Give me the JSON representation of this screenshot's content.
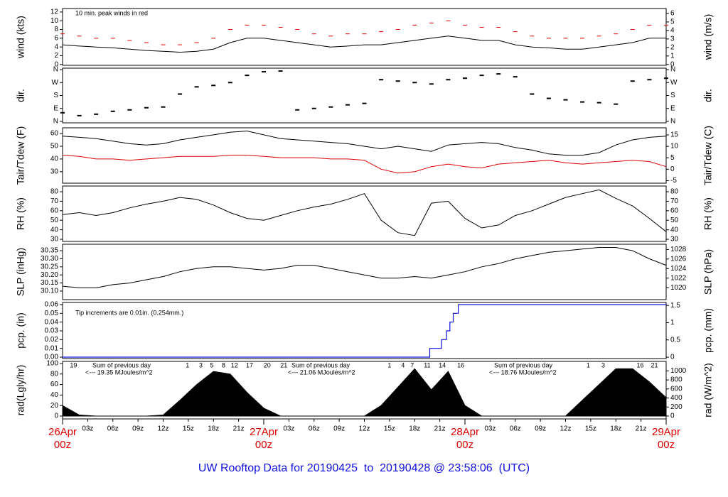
{
  "title": "UW Rooftop Data for 20190425  to  20190428 @ 23:58:06  (UTC)",
  "x": [
    0,
    2,
    4,
    6,
    8,
    10,
    12,
    14,
    16,
    18,
    20,
    22,
    24,
    26,
    28,
    30,
    32,
    34,
    36,
    38,
    40,
    42,
    44,
    46,
    48,
    50,
    52,
    54,
    56,
    58,
    60,
    62,
    64,
    66,
    68,
    70,
    72
  ],
  "xlim": [
    0,
    72
  ],
  "xticks": [
    {
      "value": 3,
      "label": "03z"
    },
    {
      "value": 6,
      "label": "06z"
    },
    {
      "value": 9,
      "label": "09z"
    },
    {
      "value": 12,
      "label": "12z"
    },
    {
      "value": 15,
      "label": "15z"
    },
    {
      "value": 18,
      "label": "18z"
    },
    {
      "value": 21,
      "label": "21z"
    },
    {
      "value": 27,
      "label": "03z"
    },
    {
      "value": 30,
      "label": "06z"
    },
    {
      "value": 33,
      "label": "09z"
    },
    {
      "value": 36,
      "label": "12z"
    },
    {
      "value": 39,
      "label": "15z"
    },
    {
      "value": 42,
      "label": "18z"
    },
    {
      "value": 45,
      "label": "21z"
    },
    {
      "value": 51,
      "label": "03z"
    },
    {
      "value": 54,
      "label": "06z"
    },
    {
      "value": 57,
      "label": "09z"
    },
    {
      "value": 60,
      "label": "12z"
    },
    {
      "value": 63,
      "label": "15z"
    },
    {
      "value": 66,
      "label": "18z"
    },
    {
      "value": 69,
      "label": "21z"
    }
  ],
  "date_ticks": [
    {
      "value": 0,
      "label": "26Apr"
    },
    {
      "value": 24,
      "label": "27Apr"
    },
    {
      "value": 48,
      "label": "28Apr"
    },
    {
      "value": 72,
      "label": "29Apr"
    }
  ],
  "date_hour_labels": [
    "00z",
    "00z",
    "00z",
    "00z"
  ],
  "chart_data": [
    {
      "type": "line",
      "ylabel": "wind (kts)",
      "y2label": "wind (m/s)",
      "ylim": [
        -0.2,
        12.8
      ],
      "yticks": [
        0,
        2,
        4,
        6,
        8,
        10,
        12
      ],
      "y2lim": [
        -0.1,
        6.58
      ],
      "y2ticks": [
        0,
        1,
        2,
        3,
        4,
        5,
        6
      ],
      "note": "10 min. peak winds in red",
      "note_color": "#e00000",
      "series": [
        {
          "color": "#000000",
          "values": [
            4.5,
            4.2,
            4,
            3.8,
            3.5,
            3.2,
            3,
            2.8,
            3,
            3.5,
            5,
            6,
            6,
            5.5,
            5,
            4.5,
            4,
            4.2,
            4.5,
            4.5,
            5,
            5.5,
            6,
            6.5,
            6,
            5.5,
            5.5,
            4.5,
            4,
            3.8,
            3.5,
            3.5,
            4,
            4.5,
            5,
            6,
            6
          ]
        },
        {
          "color": "#e00000",
          "marker": "dash",
          "values": [
            7,
            6.5,
            6,
            6,
            5.5,
            5,
            4.5,
            4.5,
            5,
            6,
            8,
            9,
            9,
            8.5,
            8,
            7,
            6.5,
            7,
            7,
            7.5,
            8,
            9,
            9.5,
            10,
            9,
            8.5,
            8.5,
            7.5,
            6.5,
            6,
            6,
            6,
            6.5,
            7,
            8,
            9,
            9
          ]
        }
      ]
    },
    {
      "type": "scatter",
      "ylabel": "dir.",
      "y2label": "dir.",
      "ylim": [
        -10,
        370
      ],
      "yticks": [
        {
          "value": 360,
          "label": "N"
        },
        {
          "value": 270,
          "label": "W"
        },
        {
          "value": 180,
          "label": "S"
        },
        {
          "value": 90,
          "label": "E"
        },
        {
          "value": 0,
          "label": "N"
        }
      ],
      "y2lim": [
        -10,
        370
      ],
      "y2ticks": [
        {
          "value": 360,
          "label": "N"
        },
        {
          "value": 270,
          "label": "W"
        },
        {
          "value": 180,
          "label": "S"
        },
        {
          "value": 90,
          "label": "E"
        },
        {
          "value": 0,
          "label": "N"
        }
      ],
      "series": [
        {
          "color": "#000000",
          "values": [
            60,
            40,
            50,
            70,
            80,
            95,
            100,
            190,
            240,
            250,
            270,
            320,
            345,
            350,
            80,
            90,
            100,
            115,
            125,
            290,
            280,
            270,
            260,
            290,
            300,
            320,
            330,
            310,
            190,
            160,
            150,
            135,
            130,
            120,
            280,
            290,
            300
          ]
        }
      ]
    },
    {
      "type": "line",
      "ylabel": "Tair/Tdew (F)",
      "y2label": "Tair/Tdew (C)",
      "ylim": [
        21,
        64.5
      ],
      "yticks": [
        30,
        40,
        50,
        60
      ],
      "y2lim": [
        -6.1,
        18.1
      ],
      "y2ticks": [
        -5,
        0,
        5,
        10,
        15
      ],
      "series": [
        {
          "color": "#000000",
          "values": [
            58,
            57,
            56,
            54,
            52,
            51,
            52,
            55,
            57,
            59,
            61,
            62,
            59,
            56,
            55,
            54,
            53,
            52,
            50,
            48,
            50,
            48,
            46,
            51,
            52,
            53,
            52,
            49,
            47,
            44,
            43,
            43,
            45,
            51,
            55,
            57,
            58
          ]
        },
        {
          "color": "#e00000",
          "values": [
            43,
            42,
            40,
            40,
            39,
            40,
            41,
            42,
            42,
            42,
            43,
            43,
            42,
            41,
            41,
            41,
            40,
            40,
            39,
            32,
            29,
            30,
            34,
            36,
            34,
            33,
            36,
            37,
            38,
            39,
            37,
            36,
            37,
            38,
            39,
            38,
            34
          ]
        }
      ]
    },
    {
      "type": "line",
      "ylabel": "RH (%)",
      "y2label": "RH (%)",
      "ylim": [
        27.8,
        86
      ],
      "yticks": [
        30,
        40,
        50,
        60,
        70,
        80
      ],
      "y2lim": [
        27.8,
        86
      ],
      "y2ticks": [
        30,
        40,
        50,
        60,
        70,
        80
      ],
      "series": [
        {
          "color": "#000000",
          "values": [
            56,
            58,
            55,
            58,
            63,
            67,
            70,
            74,
            72,
            66,
            58,
            52,
            50,
            55,
            60,
            64,
            67,
            72,
            78,
            50,
            37,
            34,
            68,
            70,
            52,
            42,
            45,
            55,
            60,
            67,
            74,
            78,
            82,
            73,
            65,
            52,
            38
          ]
        }
      ]
    },
    {
      "type": "line",
      "ylabel": "SLP (inHg)",
      "y2label": "SLP (hPa)",
      "ylim": [
        30.047,
        30.39
      ],
      "yticks": [
        {
          "value": 30.1,
          "label": "30.10"
        },
        30.15,
        {
          "value": 30.2,
          "label": "30.20"
        },
        30.25,
        {
          "value": 30.3,
          "label": "30.30"
        },
        30.35
      ],
      "y2lim": [
        1017.5,
        1029.1
      ],
      "y2ticks": [
        1020,
        1022,
        1024,
        1026,
        1028
      ],
      "series": [
        {
          "color": "#000000",
          "values": [
            30.13,
            30.12,
            30.12,
            30.14,
            30.15,
            30.17,
            30.19,
            30.22,
            30.24,
            30.25,
            30.25,
            30.24,
            30.23,
            30.24,
            30.26,
            30.26,
            30.24,
            30.22,
            30.2,
            30.18,
            30.18,
            30.19,
            30.18,
            30.2,
            30.22,
            30.25,
            30.27,
            30.3,
            30.32,
            30.34,
            30.35,
            30.36,
            30.37,
            30.37,
            30.35,
            30.3,
            30.26
          ]
        }
      ]
    },
    {
      "type": "step",
      "ylabel": "pcp. (in)",
      "y2label": "pcp. (mm)",
      "ylim": [
        -0.0016,
        0.0624
      ],
      "yticks": [
        {
          "value": 0,
          "label": "0.00"
        },
        0.01,
        0.02,
        0.03,
        0.04,
        0.05,
        0.06
      ],
      "y2lim": [
        -0.04,
        1.585
      ],
      "y2ticks": [
        0,
        0.5,
        1,
        1.5
      ],
      "note": "Tip increments are 0.01in. (0.254mm.)",
      "note_color": "#1010e0",
      "x": [
        0,
        43.8,
        45.2,
        45.8,
        46.2,
        46.6,
        47.2,
        72
      ],
      "series": [
        {
          "color": "#1010e0",
          "values": [
            0,
            0.01,
            0.02,
            0.03,
            0.04,
            0.05,
            0.06,
            0.06
          ]
        }
      ]
    },
    {
      "type": "area",
      "ylabel": "rad(Lgly/hr)",
      "y2label": "rad (W/m^2)",
      "ylim": [
        -5.4,
        104
      ],
      "yticks": [
        0,
        20,
        40,
        60,
        80,
        100
      ],
      "y2lim": [
        -63,
        1210
      ],
      "y2ticks": [
        0,
        200,
        400,
        600,
        800,
        1000
      ],
      "hour_marks": {
        "x": [
          1.3,
          14.9,
          16.5,
          17.8,
          19.2,
          20.5,
          22.3,
          24.4,
          26.4,
          39,
          40.6,
          41.7,
          43.5,
          45.3,
          47.5,
          62.7,
          64.5,
          68.9,
          70.6
        ],
        "labels": [
          "19",
          "1",
          "3",
          "5",
          "8",
          "12",
          "17",
          "20",
          "21",
          "1",
          "4",
          "7",
          "11",
          "14",
          "16",
          "1",
          "3",
          "16",
          "21"
        ]
      },
      "annotations": [
        {
          "title": "Sum of previous day",
          "text": "<--- 19.35 MJoules/m^2"
        },
        {
          "title": "Sum of previous day",
          "text": "<--- 21.06 MJoules/m^2"
        },
        {
          "title": "Sum of previous day",
          "text": "<--- 18.76 MJoules/m^2"
        }
      ],
      "series": [
        {
          "color": "#000000",
          "values": [
            20,
            2,
            0,
            0,
            0,
            0,
            2,
            30,
            60,
            85,
            80,
            45,
            15,
            0,
            0,
            0,
            0,
            0,
            0,
            20,
            55,
            90,
            50,
            85,
            20,
            0,
            0,
            0,
            0,
            0,
            0,
            30,
            60,
            90,
            90,
            65,
            35
          ]
        }
      ]
    }
  ]
}
